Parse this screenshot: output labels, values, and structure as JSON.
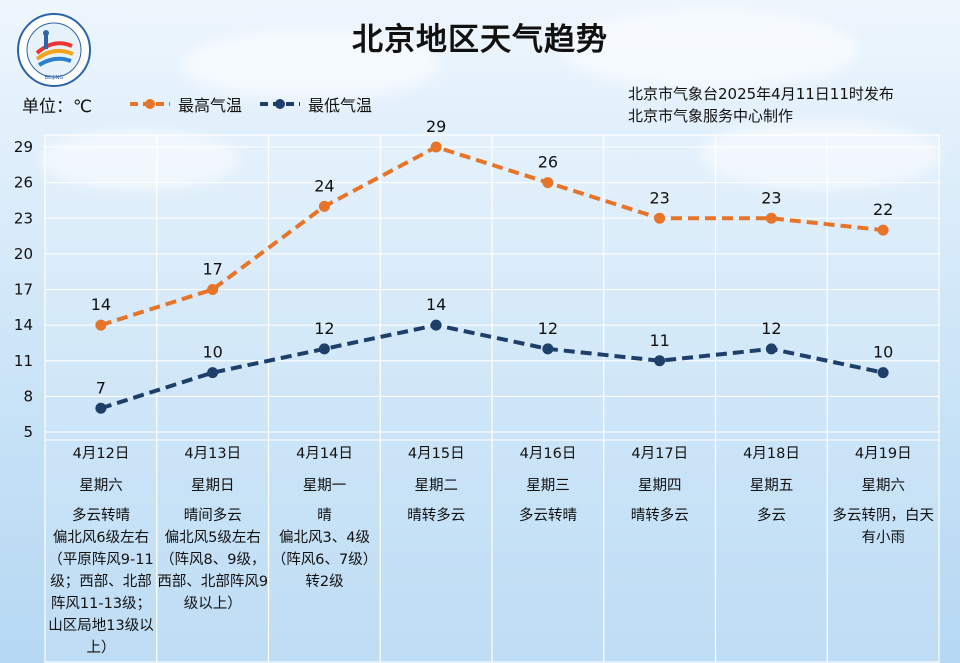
{
  "header": {
    "title": "北京地区天气趋势",
    "unit_label": "单位：℃",
    "publisher_line1": "北京市气象台2025年4月11日11时发布",
    "publisher_line2": "北京市气象服务中心制作"
  },
  "colors": {
    "high": "#e6752a",
    "low": "#1f3f6b",
    "grid": "#ffffff"
  },
  "chart_data": {
    "type": "line",
    "title": "北京地区天气趋势",
    "ylabel": "单位：℃",
    "ylim": [
      5,
      29
    ],
    "yticks": [
      5,
      8,
      11,
      14,
      17,
      20,
      23,
      26,
      29
    ],
    "grid": true,
    "legend_position": "top-left",
    "categories": [
      "4月12日",
      "4月13日",
      "4月14日",
      "4月15日",
      "4月16日",
      "4月17日",
      "4月18日",
      "4月19日"
    ],
    "series": [
      {
        "name": "最高气温",
        "values": [
          14,
          17,
          24,
          29,
          26,
          23,
          23,
          22
        ],
        "color": "#e6752a"
      },
      {
        "name": "最低气温",
        "values": [
          7,
          10,
          12,
          14,
          12,
          11,
          12,
          10
        ],
        "color": "#1f3f6b"
      }
    ]
  },
  "days": [
    {
      "date": "4月12日",
      "weekday": "星期六",
      "weather": "多云转晴",
      "wind": "偏北风6级左右（平原阵风9-11级；西部、北部阵风11-13级；山区局地13级以上）"
    },
    {
      "date": "4月13日",
      "weekday": "星期日",
      "weather": "晴间多云",
      "wind": "偏北风5级左右（阵风8、9级，西部、北部阵风9级以上）"
    },
    {
      "date": "4月14日",
      "weekday": "星期一",
      "weather": "晴",
      "wind": "偏北风3、4级（阵风6、7级）转2级"
    },
    {
      "date": "4月15日",
      "weekday": "星期二",
      "weather": "晴转多云",
      "wind": ""
    },
    {
      "date": "4月16日",
      "weekday": "星期三",
      "weather": "多云转晴",
      "wind": ""
    },
    {
      "date": "4月17日",
      "weekday": "星期四",
      "weather": "晴转多云",
      "wind": ""
    },
    {
      "date": "4月18日",
      "weekday": "星期五",
      "weather": "多云",
      "wind": ""
    },
    {
      "date": "4月19日",
      "weekday": "星期六",
      "weather": "多云转阴，白天有小雨",
      "wind": ""
    }
  ]
}
